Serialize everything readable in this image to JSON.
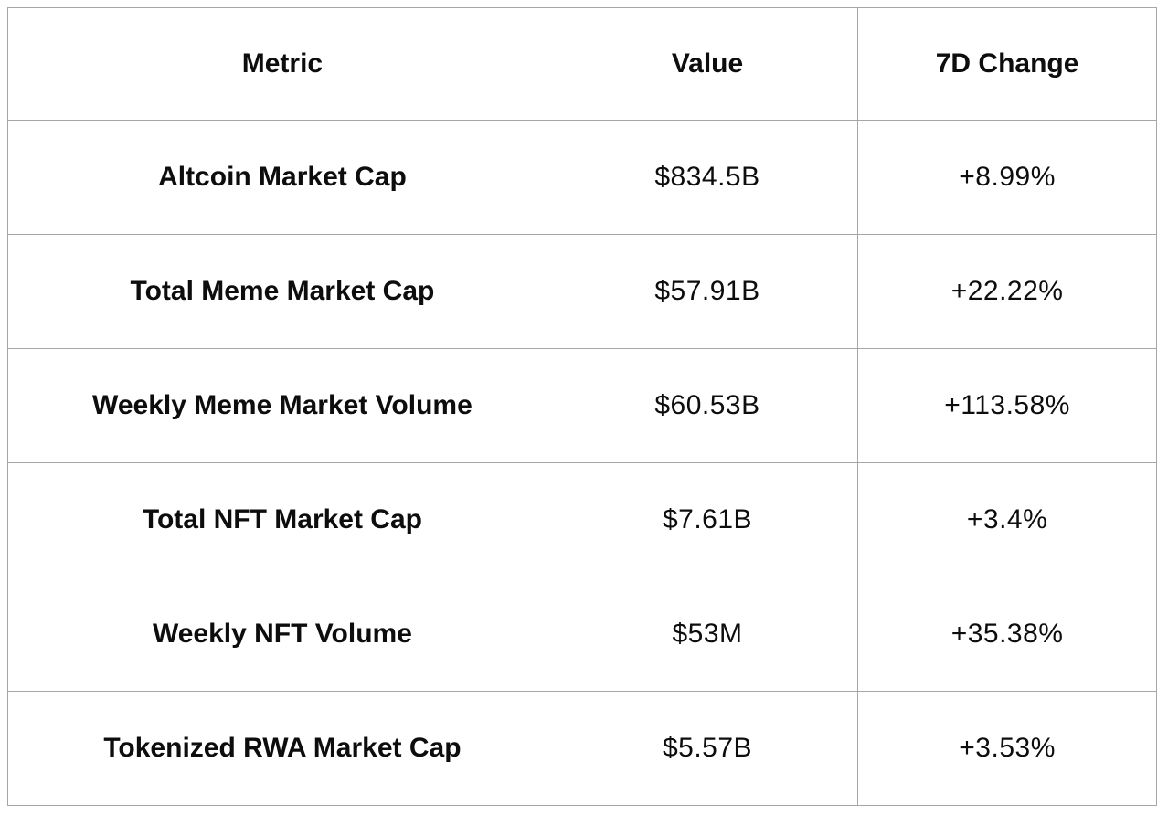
{
  "chart_data": {
    "type": "table",
    "columns": [
      "Metric",
      "Value",
      "7D Change"
    ],
    "rows": [
      [
        "Altcoin Market Cap",
        "$834.5B",
        "+8.99%"
      ],
      [
        "Total Meme Market Cap",
        "$57.91B",
        "+22.22%"
      ],
      [
        "Weekly Meme Market Volume",
        "$60.53B",
        "+113.58%"
      ],
      [
        "Total NFT Market Cap",
        "$7.61B",
        "+3.4%"
      ],
      [
        "Weekly NFT Volume",
        "$53M",
        "+35.38%"
      ],
      [
        "Tokenized RWA Market Cap",
        "$5.57B",
        "+3.53%"
      ]
    ],
    "layout": {
      "grid": "full-borders",
      "text_align": "center"
    }
  },
  "colors": {
    "border": "#a6a6a6",
    "text": "#0d0d0d",
    "background": "#ffffff"
  }
}
